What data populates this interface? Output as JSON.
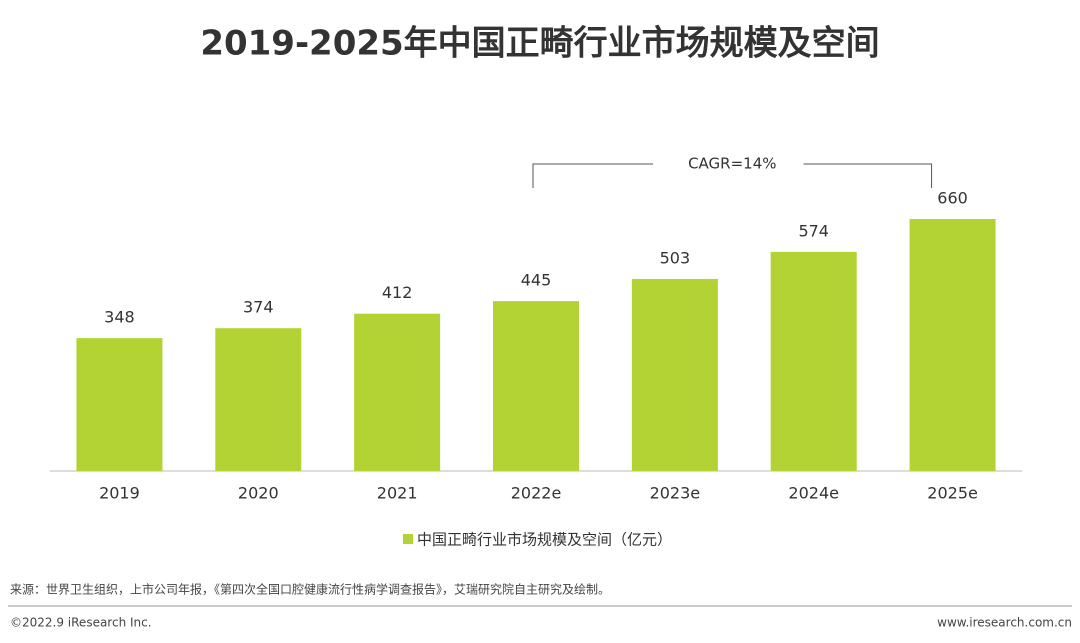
{
  "chart_data": {
    "type": "bar",
    "title": "2019-2025年中国正畸行业市场规模及空间",
    "categories": [
      "2019",
      "2020",
      "2021",
      "2022e",
      "2023e",
      "2024e",
      "2025e"
    ],
    "series": [
      {
        "name": "中国正畸行业市场规模及空间（亿元）",
        "color": "#b3d233",
        "values": [
          348,
          374,
          412,
          445,
          503,
          574,
          660
        ]
      }
    ],
    "annotation": "CAGR=14%",
    "legend": "bottom"
  },
  "source": "来源：世界卫生组织，上市公司年报，《第四次全国口腔健康流行性病学调查报告》，艾瑞研究院自主研究及绘制。",
  "footer": {
    "copyright": "©2022.9 iResearch Inc.",
    "website": "www.iresearch.com.cn"
  }
}
